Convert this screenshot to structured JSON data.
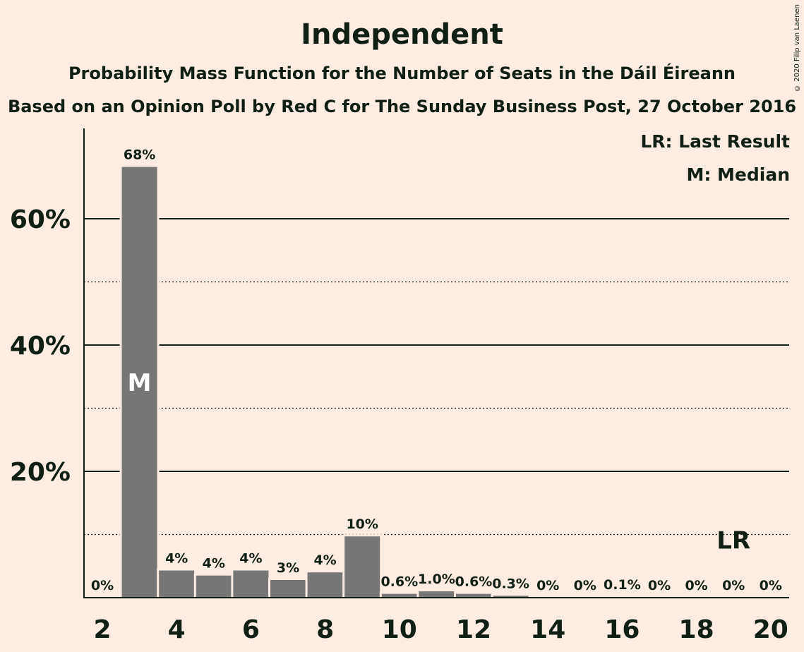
{
  "chart_data": {
    "type": "bar",
    "title": "Independent",
    "subtitle": "Probability Mass Function for the Number of Seats in the Dáil Éireann",
    "subtitle2": "Based on an Opinion Poll by Red C for The Sunday Business Post, 27 October 2016",
    "categories": [
      2,
      3,
      4,
      5,
      6,
      7,
      8,
      9,
      10,
      11,
      12,
      13,
      14,
      15,
      16,
      17,
      18,
      19,
      20
    ],
    "values": [
      0,
      68.2,
      4.3,
      3.5,
      4.3,
      2.8,
      4.0,
      9.7,
      0.6,
      1.0,
      0.6,
      0.3,
      0,
      0,
      0.1,
      0,
      0,
      0,
      0
    ],
    "data_labels": [
      "0%",
      "68%",
      "4%",
      "4%",
      "4%",
      "3%",
      "4%",
      "10%",
      "0.6%",
      "1.0%",
      "0.6%",
      "0.3%",
      "0%",
      "0%",
      "0.1%",
      "0%",
      "0%",
      "0%",
      "0%"
    ],
    "x_tick_labels": [
      "2",
      "4",
      "6",
      "8",
      "10",
      "12",
      "14",
      "16",
      "18",
      "20"
    ],
    "y_tick_labels": [
      "20%",
      "40%",
      "60%"
    ],
    "y_major_ticks": [
      20,
      40,
      60
    ],
    "y_minor_gridlines": [
      10,
      30,
      50
    ],
    "ylim": [
      0,
      75
    ],
    "median_seats": 3,
    "median_marker": "M",
    "last_result_seats": 19,
    "last_result_marker": "LR",
    "legend": [
      "LR: Last Result",
      "M: Median"
    ],
    "legend_position": "top-right",
    "bar_color": "#767676",
    "background_color": "#fdece1",
    "text_color": "#0f1f14"
  },
  "copyright": "© 2020 Filip van Laenen"
}
